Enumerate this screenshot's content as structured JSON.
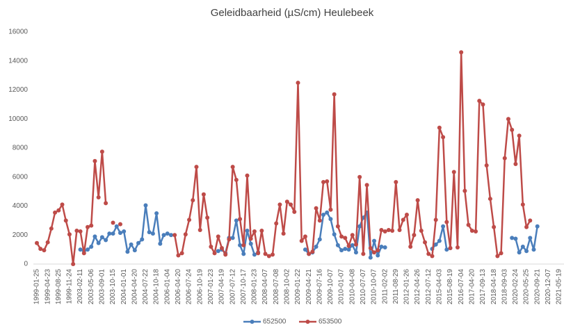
{
  "chart_data": {
    "type": "line",
    "title": "Geleidbaarheid (µS/cm) Heulebeek",
    "categories": [
      "1999-01-25",
      null,
      null,
      "1999-04-23",
      null,
      null,
      "1999-08-25",
      null,
      null,
      "1999-11-24",
      null,
      null,
      "2003-02-11",
      null,
      null,
      "2003-05-06",
      null,
      null,
      "2003-09-01",
      null,
      null,
      "2003-10-15",
      null,
      null,
      "2004-01-01",
      null,
      null,
      "2004-04-20",
      null,
      null,
      "2004-07-22",
      null,
      null,
      "2004-10-18",
      null,
      null,
      "2006-01-04",
      null,
      null,
      "2006-04-20",
      null,
      null,
      "2006-07-24",
      null,
      null,
      "2006-10-19",
      null,
      null,
      "2007-01-23",
      null,
      null,
      "2007-04-19",
      null,
      null,
      "2007-07-12",
      null,
      null,
      "2007-10-17",
      null,
      null,
      "2008-01-23",
      null,
      null,
      "2008-04-07",
      null,
      null,
      "2008-07-08",
      null,
      null,
      "2008-10-02",
      null,
      null,
      "2009-01-22",
      null,
      null,
      "2009-04-21",
      null,
      null,
      "2009-07-16",
      null,
      null,
      "2009-10-07",
      null,
      null,
      "2010-01-07",
      null,
      null,
      "2010-04-08",
      null,
      null,
      "2010-07-07",
      null,
      null,
      "2010-10-07",
      null,
      null,
      "2011-02-02",
      null,
      null,
      "2011-08-29",
      null,
      null,
      "2012-01-26",
      null,
      null,
      "2012-04-26",
      null,
      null,
      "2012-07-12",
      null,
      null,
      "2015-04-03",
      null,
      null,
      "2015-08-19",
      null,
      null,
      "2016-07-04",
      null,
      null,
      "2017-04-20",
      null,
      null,
      "2017-09-13",
      null,
      null,
      "2018-04-18",
      null,
      null,
      "2018-09-03",
      null,
      null,
      "2020-02-24",
      null,
      null,
      "2020-05-25",
      null,
      null,
      "2020-09-21",
      null,
      null,
      "2020-12-07",
      null,
      null,
      "2021-05-19",
      null
    ],
    "series": [
      {
        "name": "652500",
        "color": "#4a7ebb",
        "values": [
          null,
          null,
          null,
          null,
          null,
          null,
          null,
          null,
          null,
          null,
          null,
          null,
          1000,
          900,
          1000,
          1200,
          1900,
          1450,
          1850,
          1650,
          2100,
          2100,
          2600,
          2150,
          2250,
          850,
          1350,
          950,
          1450,
          1700,
          4050,
          2200,
          2100,
          3500,
          1400,
          2000,
          2100,
          2000,
          null,
          null,
          null,
          null,
          null,
          null,
          null,
          null,
          null,
          null,
          null,
          null,
          900,
          1000,
          750,
          1800,
          1800,
          3000,
          1300,
          700,
          2300,
          1400,
          650,
          800,
          null,
          null,
          null,
          null,
          null,
          null,
          null,
          null,
          null,
          null,
          null,
          null,
          1000,
          700,
          800,
          1200,
          1700,
          3400,
          3550,
          3100,
          2050,
          1300,
          950,
          1050,
          1000,
          1300,
          800,
          2600,
          3200,
          3550,
          450,
          1600,
          600,
          1200,
          1150,
          null,
          null,
          null,
          null,
          null,
          null,
          null,
          null,
          null,
          null,
          null,
          null,
          1050,
          1350,
          1600,
          2600,
          1000,
          1100,
          null,
          null,
          null,
          null,
          null,
          null,
          null,
          null,
          null,
          null,
          null,
          null,
          null,
          null,
          null,
          null,
          1800,
          1750,
          800,
          1200,
          900,
          1800,
          1000,
          2600,
          null,
          null,
          null,
          null,
          null,
          null,
          null
        ]
      },
      {
        "name": "653500",
        "color": "#be4b48",
        "values": [
          1450,
          1050,
          950,
          1500,
          2450,
          3550,
          3700,
          4100,
          3000,
          2050,
          0,
          2300,
          2250,
          750,
          2550,
          2650,
          7100,
          4600,
          7750,
          4200,
          null,
          2850,
          null,
          2750,
          null,
          null,
          null,
          null,
          null,
          null,
          null,
          null,
          null,
          null,
          null,
          null,
          null,
          null,
          2000,
          600,
          750,
          2050,
          3050,
          4400,
          6700,
          2350,
          4800,
          3200,
          1200,
          750,
          1900,
          1100,
          650,
          1700,
          6700,
          5800,
          3100,
          1300,
          6100,
          1750,
          2250,
          750,
          2300,
          700,
          550,
          650,
          2800,
          4100,
          2100,
          4300,
          4100,
          3600,
          12500,
          1600,
          1900,
          700,
          850,
          3850,
          3000,
          5650,
          5700,
          3750,
          11700,
          2600,
          1900,
          1800,
          1250,
          2000,
          1350,
          6000,
          700,
          5450,
          1100,
          800,
          950,
          2350,
          2250,
          2350,
          2300,
          5650,
          2350,
          3050,
          3400,
          1200,
          2000,
          4400,
          2300,
          1500,
          700,
          550,
          3050,
          9400,
          8750,
          2900,
          1100,
          6350,
          1150,
          14600,
          5050,
          2700,
          2300,
          2250,
          11250,
          11000,
          6800,
          4500,
          2550,
          550,
          750,
          7300,
          10000,
          9250,
          6900,
          8850,
          4100,
          2550,
          3000,
          null,
          null,
          null,
          null,
          null,
          null,
          null,
          null,
          null
        ]
      }
    ],
    "ylim": [
      0,
      16000
    ],
    "yticks": [
      0,
      2000,
      4000,
      6000,
      8000,
      10000,
      12000,
      14000,
      16000
    ],
    "grid": false,
    "legend": "bottom"
  }
}
